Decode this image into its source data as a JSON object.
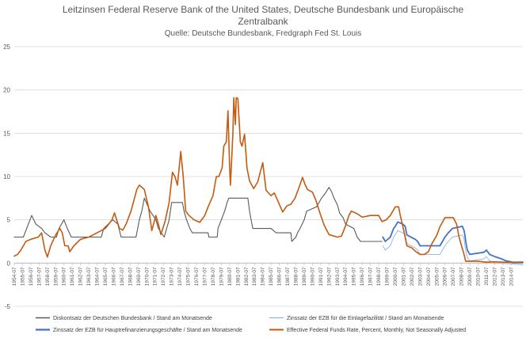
{
  "chart_data": {
    "type": "line",
    "title_line1": "Leitzinsen Federal Reserve Bank of the United States, Deutsche Bundesbank und Europäische",
    "title_line2": "Zentralbank",
    "subtitle": "Quelle: Deutsche Bundesbank, Fredgraph Fed St. Louis",
    "xlabel": "",
    "ylabel": "",
    "ylim": [
      -5,
      25
    ],
    "yticks": [
      -5,
      0,
      5,
      10,
      15,
      20,
      25
    ],
    "grid": true,
    "legend_position": "bottom",
    "x_tick_labels": [
      "1954-07",
      "1955-07",
      "1956-07",
      "1957-07",
      "1958-07",
      "1959-07",
      "1960-07",
      "1961-07",
      "1962-07",
      "1963-07",
      "1964-07",
      "1965-07",
      "1966-07",
      "1967-07",
      "1968-07",
      "1969-07",
      "1970-07",
      "1971-07",
      "1972-07",
      "1973-07",
      "1974-07",
      "1975-07",
      "1976-07",
      "1977-07",
      "1978-07",
      "1979-07",
      "1980-07",
      "1981-07",
      "1982-07",
      "1983-07",
      "1984-07",
      "1985-07",
      "1986-07",
      "1987-07",
      "1988-07",
      "1989-07",
      "1990-07",
      "1991-07",
      "1992-07",
      "1993-07",
      "1994-07",
      "1995-07",
      "1996-07",
      "1997-07",
      "1998-07",
      "1999-07",
      "2000-07",
      "2001-07",
      "2002-07",
      "2003-07",
      "2004-07",
      "2005-07",
      "2006-07",
      "2007-07",
      "2008-07",
      "2009-07",
      "2010-07",
      "2011-07",
      "2012-07",
      "2013-07",
      "2014-07"
    ],
    "x_range": [
      1954.5,
      2015.9
    ],
    "series": [
      {
        "name": "Diskontsatz der Deutschen Bundesbank / Stand am Monatsende",
        "color": "#595959",
        "width": 1.1,
        "points": [
          [
            1954.5,
            3.0
          ],
          [
            1955.6,
            3.0
          ],
          [
            1955.8,
            3.5
          ],
          [
            1956.2,
            4.5
          ],
          [
            1956.6,
            5.5
          ],
          [
            1957.1,
            4.5
          ],
          [
            1957.8,
            4.0
          ],
          [
            1958.2,
            3.5
          ],
          [
            1958.9,
            3.0
          ],
          [
            1959.6,
            3.0
          ],
          [
            1959.9,
            4.0
          ],
          [
            1960.5,
            5.0
          ],
          [
            1960.9,
            4.0
          ],
          [
            1961.4,
            3.0
          ],
          [
            1965.0,
            3.0
          ],
          [
            1965.3,
            4.0
          ],
          [
            1966.4,
            5.0
          ],
          [
            1967.0,
            4.5
          ],
          [
            1967.4,
            3.0
          ],
          [
            1969.2,
            3.0
          ],
          [
            1969.6,
            5.0
          ],
          [
            1969.9,
            6.0
          ],
          [
            1970.2,
            7.5
          ],
          [
            1970.9,
            6.0
          ],
          [
            1971.6,
            5.0
          ],
          [
            1971.9,
            4.0
          ],
          [
            1972.6,
            3.0
          ],
          [
            1972.9,
            4.0
          ],
          [
            1973.2,
            5.0
          ],
          [
            1973.5,
            7.0
          ],
          [
            1974.8,
            7.0
          ],
          [
            1975.0,
            6.0
          ],
          [
            1975.3,
            5.0
          ],
          [
            1975.7,
            4.0
          ],
          [
            1976.0,
            3.5
          ],
          [
            1977.9,
            3.5
          ],
          [
            1978.0,
            3.0
          ],
          [
            1979.0,
            3.0
          ],
          [
            1979.1,
            4.0
          ],
          [
            1979.5,
            5.0
          ],
          [
            1979.9,
            6.0
          ],
          [
            1980.2,
            7.0
          ],
          [
            1980.4,
            7.5
          ],
          [
            1982.7,
            7.5
          ],
          [
            1982.9,
            6.0
          ],
          [
            1983.1,
            5.0
          ],
          [
            1983.3,
            4.0
          ],
          [
            1985.5,
            4.0
          ],
          [
            1986.1,
            3.5
          ],
          [
            1987.9,
            3.5
          ],
          [
            1988.0,
            2.5
          ],
          [
            1988.5,
            3.0
          ],
          [
            1988.7,
            3.5
          ],
          [
            1989.0,
            4.0
          ],
          [
            1989.5,
            5.0
          ],
          [
            1989.8,
            6.0
          ],
          [
            1991.0,
            6.5
          ],
          [
            1991.6,
            7.5
          ],
          [
            1992.0,
            8.0
          ],
          [
            1992.5,
            8.75
          ],
          [
            1992.8,
            8.25
          ],
          [
            1993.1,
            7.5
          ],
          [
            1993.5,
            6.75
          ],
          [
            1993.8,
            5.75
          ],
          [
            1994.2,
            5.25
          ],
          [
            1994.5,
            4.5
          ],
          [
            1995.5,
            4.0
          ],
          [
            1995.9,
            3.0
          ],
          [
            1996.3,
            2.5
          ],
          [
            1998.9,
            2.5
          ]
        ]
      },
      {
        "name": "Zinssatz der EZB für die Einlagefazilität / Stand am Monatsende",
        "color": "#8db4e2",
        "width": 0.9,
        "points": [
          [
            1999.0,
            2.0
          ],
          [
            1999.3,
            1.5
          ],
          [
            1999.9,
            2.0
          ],
          [
            2000.1,
            2.5
          ],
          [
            2000.3,
            3.0
          ],
          [
            2000.8,
            3.75
          ],
          [
            2001.4,
            3.5
          ],
          [
            2001.7,
            3.25
          ],
          [
            2001.9,
            2.25
          ],
          [
            2002.9,
            1.75
          ],
          [
            2003.2,
            1.5
          ],
          [
            2003.5,
            1.0
          ],
          [
            2005.9,
            1.0
          ],
          [
            2006.2,
            1.5
          ],
          [
            2006.5,
            2.0
          ],
          [
            2006.9,
            2.5
          ],
          [
            2007.4,
            3.0
          ],
          [
            2008.6,
            3.25
          ],
          [
            2008.8,
            2.75
          ],
          [
            2008.9,
            2.0
          ],
          [
            2009.1,
            1.0
          ],
          [
            2009.3,
            0.5
          ],
          [
            2009.5,
            0.25
          ],
          [
            2011.2,
            0.5
          ],
          [
            2011.5,
            0.75
          ],
          [
            2011.9,
            0.25
          ],
          [
            2012.5,
            0.0
          ],
          [
            2014.5,
            -0.1
          ],
          [
            2015.9,
            -0.2
          ]
        ]
      },
      {
        "name": "Zinssatz der EZB für Hauptrefinanzierungsgeschäfte / Stand am Monatsende",
        "color": "#4472c4",
        "width": 1.8,
        "points": [
          [
            1999.0,
            3.0
          ],
          [
            1999.3,
            2.5
          ],
          [
            1999.9,
            3.0
          ],
          [
            2000.1,
            3.5
          ],
          [
            2000.3,
            4.0
          ],
          [
            2000.5,
            4.25
          ],
          [
            2000.8,
            4.75
          ],
          [
            2001.4,
            4.5
          ],
          [
            2001.7,
            4.25
          ],
          [
            2001.9,
            3.25
          ],
          [
            2002.9,
            2.75
          ],
          [
            2003.2,
            2.5
          ],
          [
            2003.5,
            2.0
          ],
          [
            2005.9,
            2.0
          ],
          [
            2006.2,
            2.5
          ],
          [
            2006.5,
            3.0
          ],
          [
            2006.9,
            3.5
          ],
          [
            2007.4,
            4.0
          ],
          [
            2008.6,
            4.25
          ],
          [
            2008.8,
            3.75
          ],
          [
            2008.9,
            3.25
          ],
          [
            2009.0,
            2.5
          ],
          [
            2009.2,
            1.5
          ],
          [
            2009.5,
            1.0
          ],
          [
            2011.2,
            1.25
          ],
          [
            2011.5,
            1.5
          ],
          [
            2011.9,
            1.0
          ],
          [
            2012.5,
            0.75
          ],
          [
            2013.3,
            0.5
          ],
          [
            2013.9,
            0.25
          ],
          [
            2014.5,
            0.15
          ],
          [
            2014.7,
            0.05
          ],
          [
            2015.9,
            0.05
          ]
        ]
      },
      {
        "name": "Effective Federal Funds Rate, Percent, Monthly, Not Seasonally Adjusted",
        "color": "#c55a11",
        "width": 1.6,
        "points": [
          [
            1954.5,
            0.8
          ],
          [
            1954.9,
            1.0
          ],
          [
            1955.3,
            1.5
          ],
          [
            1955.9,
            2.5
          ],
          [
            1956.5,
            2.75
          ],
          [
            1957.4,
            3.0
          ],
          [
            1957.8,
            3.5
          ],
          [
            1958.2,
            1.5
          ],
          [
            1958.5,
            0.7
          ],
          [
            1958.9,
            2.0
          ],
          [
            1959.5,
            3.25
          ],
          [
            1960.0,
            4.0
          ],
          [
            1960.3,
            3.5
          ],
          [
            1960.6,
            2.0
          ],
          [
            1961.0,
            2.0
          ],
          [
            1961.2,
            1.3
          ],
          [
            1961.7,
            2.0
          ],
          [
            1962.5,
            2.75
          ],
          [
            1963.5,
            3.0
          ],
          [
            1964.5,
            3.5
          ],
          [
            1965.5,
            4.0
          ],
          [
            1966.3,
            5.0
          ],
          [
            1966.6,
            5.8
          ],
          [
            1967.2,
            4.0
          ],
          [
            1967.6,
            3.8
          ],
          [
            1968.0,
            4.5
          ],
          [
            1968.6,
            6.0
          ],
          [
            1969.3,
            8.5
          ],
          [
            1969.6,
            9.0
          ],
          [
            1970.2,
            8.5
          ],
          [
            1970.7,
            6.5
          ],
          [
            1971.1,
            3.75
          ],
          [
            1971.6,
            5.5
          ],
          [
            1971.9,
            4.5
          ],
          [
            1972.2,
            3.3
          ],
          [
            1972.7,
            4.8
          ],
          [
            1973.2,
            7.0
          ],
          [
            1973.6,
            10.5
          ],
          [
            1973.9,
            10.0
          ],
          [
            1974.2,
            9.0
          ],
          [
            1974.6,
            12.9
          ],
          [
            1974.9,
            10.0
          ],
          [
            1975.2,
            6.0
          ],
          [
            1975.6,
            5.5
          ],
          [
            1976.2,
            5.0
          ],
          [
            1976.9,
            4.7
          ],
          [
            1977.5,
            5.5
          ],
          [
            1977.9,
            6.5
          ],
          [
            1978.5,
            7.8
          ],
          [
            1978.9,
            10.0
          ],
          [
            1979.2,
            10.0
          ],
          [
            1979.6,
            11.0
          ],
          [
            1979.8,
            13.5
          ],
          [
            1980.1,
            14.0
          ],
          [
            1980.3,
            17.6
          ],
          [
            1980.5,
            11.0
          ],
          [
            1980.6,
            9.0
          ],
          [
            1980.9,
            15.0
          ],
          [
            1981.0,
            19.1
          ],
          [
            1981.2,
            16.0
          ],
          [
            1981.3,
            19.1
          ],
          [
            1981.5,
            19.0
          ],
          [
            1981.8,
            14.0
          ],
          [
            1982.0,
            13.5
          ],
          [
            1982.3,
            14.9
          ],
          [
            1982.6,
            11.0
          ],
          [
            1982.9,
            9.5
          ],
          [
            1983.4,
            8.6
          ],
          [
            1983.9,
            9.4
          ],
          [
            1984.5,
            11.6
          ],
          [
            1984.9,
            8.4
          ],
          [
            1985.5,
            7.8
          ],
          [
            1985.9,
            8.1
          ],
          [
            1986.5,
            6.8
          ],
          [
            1986.9,
            5.9
          ],
          [
            1987.4,
            6.6
          ],
          [
            1987.9,
            6.8
          ],
          [
            1988.4,
            7.5
          ],
          [
            1988.9,
            8.8
          ],
          [
            1989.3,
            9.9
          ],
          [
            1989.6,
            9.1
          ],
          [
            1989.9,
            8.5
          ],
          [
            1990.5,
            8.2
          ],
          [
            1990.9,
            7.3
          ],
          [
            1991.4,
            5.8
          ],
          [
            1991.9,
            4.4
          ],
          [
            1992.5,
            3.3
          ],
          [
            1993.5,
            3.0
          ],
          [
            1994.0,
            3.1
          ],
          [
            1994.5,
            4.3
          ],
          [
            1994.9,
            5.5
          ],
          [
            1995.2,
            6.0
          ],
          [
            1995.9,
            5.7
          ],
          [
            1996.5,
            5.3
          ],
          [
            1997.5,
            5.5
          ],
          [
            1998.5,
            5.5
          ],
          [
            1998.9,
            4.8
          ],
          [
            1999.4,
            5.0
          ],
          [
            1999.9,
            5.5
          ],
          [
            2000.5,
            6.5
          ],
          [
            2000.9,
            6.5
          ],
          [
            2001.1,
            5.5
          ],
          [
            2001.5,
            3.9
          ],
          [
            2001.9,
            2.0
          ],
          [
            2002.5,
            1.75
          ],
          [
            2003.0,
            1.3
          ],
          [
            2003.5,
            1.0
          ],
          [
            2004.0,
            1.0
          ],
          [
            2004.5,
            1.3
          ],
          [
            2004.9,
            2.2
          ],
          [
            2005.5,
            3.2
          ],
          [
            2005.9,
            4.2
          ],
          [
            2006.5,
            5.25
          ],
          [
            2007.5,
            5.25
          ],
          [
            2007.9,
            4.5
          ],
          [
            2008.2,
            3.0
          ],
          [
            2008.5,
            2.0
          ],
          [
            2008.8,
            1.0
          ],
          [
            2009.0,
            0.2
          ],
          [
            2010.5,
            0.2
          ],
          [
            2011.5,
            0.1
          ],
          [
            2012.5,
            0.15
          ],
          [
            2013.5,
            0.1
          ],
          [
            2014.5,
            0.1
          ],
          [
            2015.9,
            0.12
          ]
        ]
      }
    ]
  }
}
